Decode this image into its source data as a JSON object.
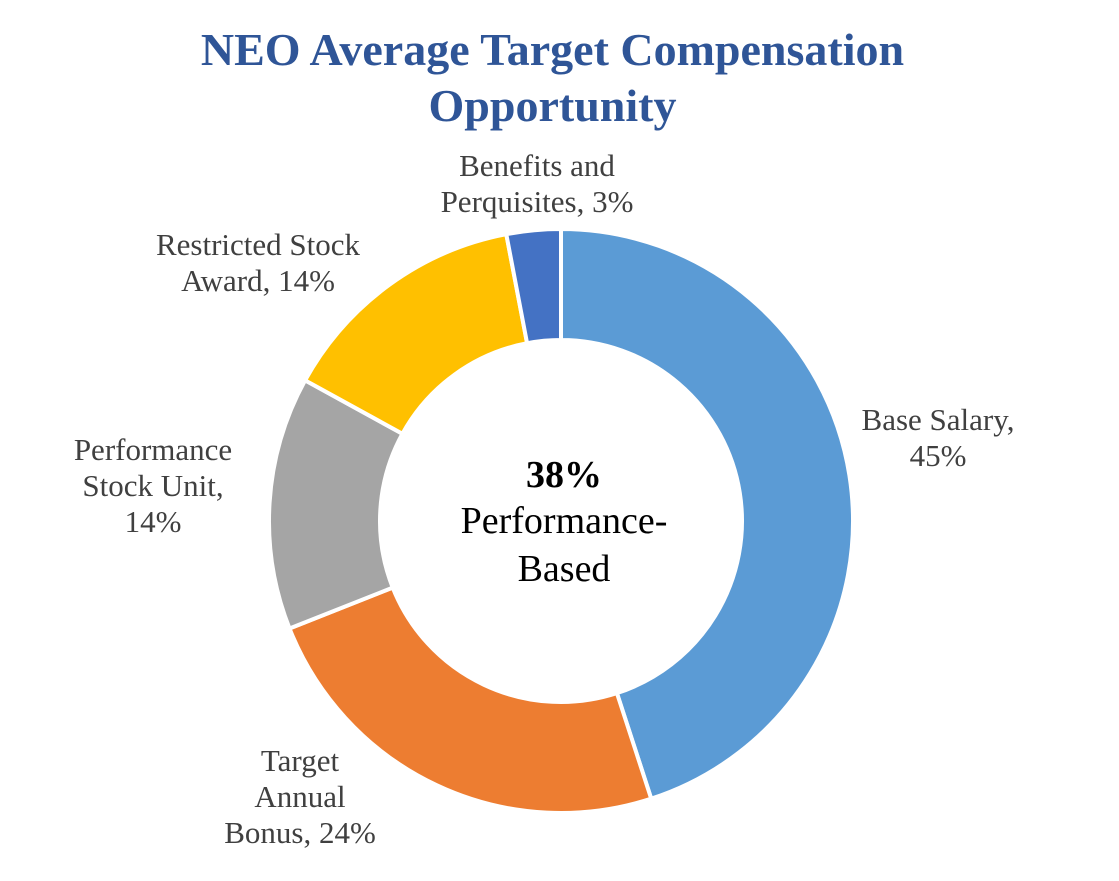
{
  "chart_data": {
    "type": "pie",
    "title": "NEO Average Target Compensation Opportunity",
    "title_lines": [
      "NEO Average Target Compensation",
      "Opportunity"
    ],
    "donut": true,
    "slices": [
      {
        "name": "Base Salary",
        "value": 45,
        "color": "#5B9BD5",
        "label_lines": [
          "Base Salary,",
          "45%"
        ]
      },
      {
        "name": "Target Annual Bonus",
        "value": 24,
        "color": "#ED7D31",
        "label_lines": [
          "Target",
          "Annual",
          "Bonus, 24%"
        ]
      },
      {
        "name": "Performance Stock Unit",
        "value": 14,
        "color": "#A5A5A5",
        "label_lines": [
          "Performance",
          "Stock Unit,",
          "14%"
        ]
      },
      {
        "name": "Restricted Stock Award",
        "value": 14,
        "color": "#FFC000",
        "label_lines": [
          "Restricted Stock",
          "Award, 14%"
        ]
      },
      {
        "name": "Benefits and Perquisites",
        "value": 3,
        "color": "#4472C4",
        "label_lines": [
          "Benefits and",
          "Perquisites, 3%"
        ]
      }
    ],
    "center": {
      "value": "38%",
      "caption": "Performance-\nBased"
    },
    "title_color": "#2F5597"
  }
}
